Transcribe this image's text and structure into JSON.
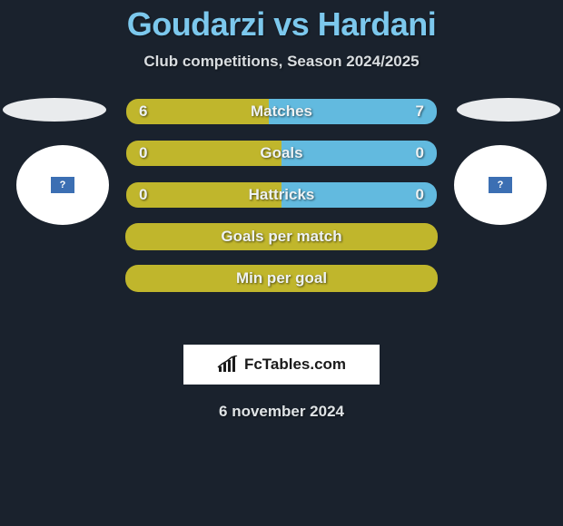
{
  "title": "Goudarzi vs Hardani",
  "subtitle": "Club competitions, Season 2024/2025",
  "date": "6 november 2024",
  "attrib": "FcTables.com",
  "colors": {
    "green": "#c0b62c",
    "blue": "#62badf",
    "title": "#7cc8ed",
    "bg": "#1a222d"
  },
  "rows": [
    {
      "kind": "split",
      "label": "Matches",
      "left": "6",
      "right": "7",
      "left_pct": 46,
      "left_color": "#c0b62c",
      "right_color": "#62badf"
    },
    {
      "kind": "split",
      "label": "Goals",
      "left": "0",
      "right": "0",
      "left_pct": 50,
      "left_color": "#c0b62c",
      "right_color": "#62badf"
    },
    {
      "kind": "split",
      "label": "Hattricks",
      "left": "0",
      "right": "0",
      "left_pct": 50,
      "left_color": "#c0b62c",
      "right_color": "#62badf"
    },
    {
      "kind": "full",
      "label": "Goals per match",
      "bg": "#c0b62c"
    },
    {
      "kind": "full",
      "label": "Min per goal",
      "bg": "#c0b62c"
    }
  ]
}
